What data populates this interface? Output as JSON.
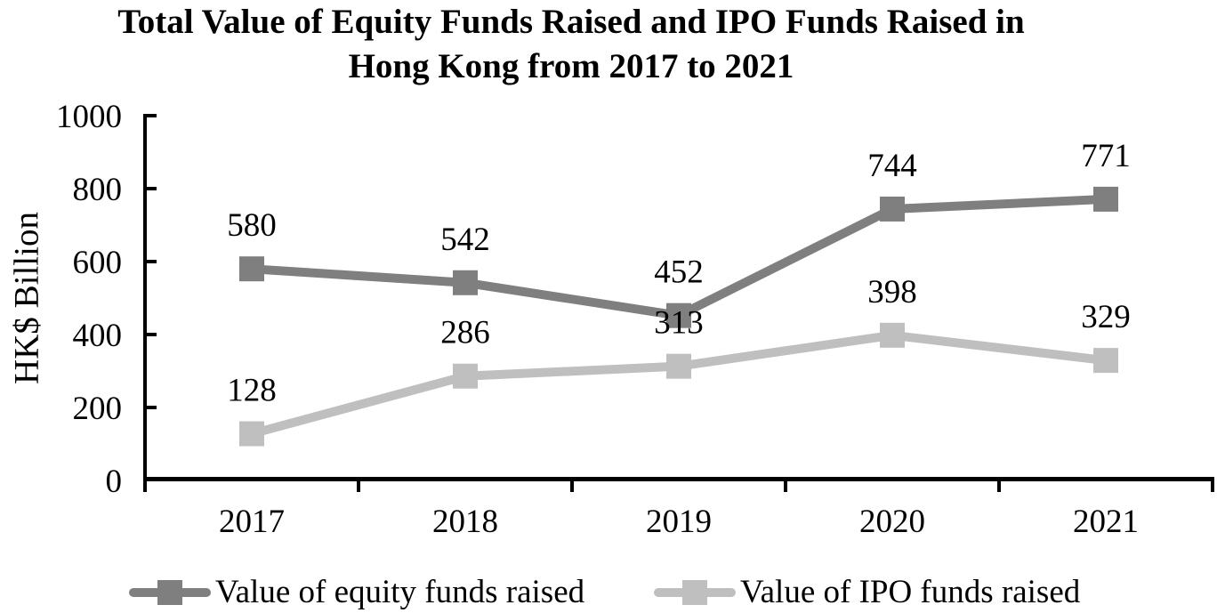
{
  "page": {
    "background": "#ffffff",
    "text_color": "#000000",
    "axis_color": "#000000"
  },
  "chart": {
    "title_line1": "Total Value of Equity Funds Raised and IPO Funds Raised in",
    "title_line2": "Hong Kong from 2017 to 2021",
    "y_axis_title": "HK$ Billion"
  },
  "legend": {
    "items": [
      {
        "label": "Value of equity funds raised",
        "color": "#7f7f7f"
      },
      {
        "label": "Value of IPO funds raised",
        "color": "#bfbfbf"
      }
    ]
  },
  "chart_data": {
    "type": "line",
    "title": "Total Value of Equity Funds Raised and IPO Funds Raised in Hong Kong from 2017 to 2021",
    "categories": [
      "2017",
      "2018",
      "2019",
      "2020",
      "2021"
    ],
    "series": [
      {
        "name": "Value of equity funds raised",
        "color": "#7f7f7f",
        "marker": "square",
        "values": [
          580,
          542,
          452,
          744,
          771
        ]
      },
      {
        "name": "Value of IPO funds raised",
        "color": "#bfbfbf",
        "marker": "square",
        "values": [
          128,
          286,
          313,
          398,
          329
        ]
      }
    ],
    "xlabel": "",
    "ylabel": "HK$ Billion",
    "ylim": [
      0,
      1000
    ],
    "y_ticks": [
      0,
      200,
      400,
      600,
      800,
      1000
    ],
    "grid": false,
    "data_labels": true,
    "legend_position": "bottom"
  }
}
